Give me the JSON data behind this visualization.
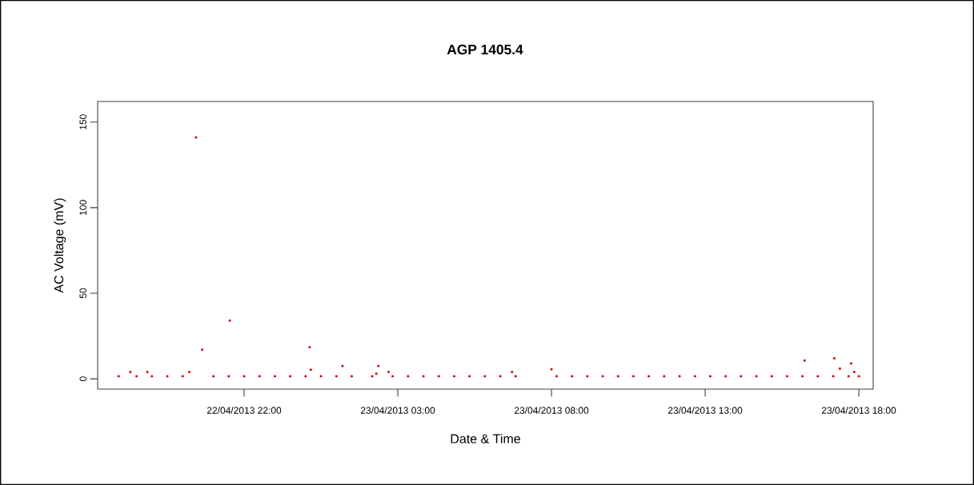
{
  "chart_data": {
    "type": "scatter",
    "title": "AGP   1405.4",
    "xlabel": "Date & Time",
    "ylabel": "AC Voltage (mV)",
    "xlim": [
      "2013-04-22T17:14",
      "2013-04-23T18:28"
    ],
    "ylim": [
      -6,
      162
    ],
    "xticks": [
      {
        "value": "2013-04-22T22:00",
        "label": "22/04/2013 22:00"
      },
      {
        "value": "2013-04-23T03:00",
        "label": "23/04/2013 03:00"
      },
      {
        "value": "2013-04-23T08:00",
        "label": "23/04/2013 08:00"
      },
      {
        "value": "2013-04-23T13:00",
        "label": "23/04/2013 13:00"
      },
      {
        "value": "2013-04-23T18:00",
        "label": "23/04/2013 18:00"
      }
    ],
    "yticks": [
      0,
      50,
      100,
      150
    ],
    "grid": false,
    "series": [
      {
        "color": "#cc0000",
        "x": [
          "2013-04-22T17:55",
          "2013-04-22T18:18",
          "2013-04-22T18:30",
          "2013-04-22T18:51",
          "2013-04-22T19:00",
          "2013-04-22T19:30",
          "2013-04-22T20:00",
          "2013-04-22T20:13",
          "2013-04-22T20:26",
          "2013-04-22T20:38",
          "2013-04-22T21:00",
          "2013-04-22T21:30",
          "2013-04-22T21:32",
          "2013-04-22T22:00",
          "2013-04-22T22:30",
          "2013-04-22T23:00",
          "2013-04-22T23:30",
          "2013-04-23T00:00",
          "2013-04-23T00:08",
          "2013-04-23T00:10",
          "2013-04-23T00:30",
          "2013-04-23T01:00",
          "2013-04-23T01:12",
          "2013-04-23T01:30",
          "2013-04-23T02:10",
          "2013-04-23T02:18",
          "2013-04-23T02:22",
          "2013-04-23T02:42",
          "2013-04-23T02:50",
          "2013-04-23T03:20",
          "2013-04-23T03:50",
          "2013-04-23T04:20",
          "2013-04-23T04:50",
          "2013-04-23T05:20",
          "2013-04-23T05:50",
          "2013-04-23T06:20",
          "2013-04-23T06:43",
          "2013-04-23T06:50",
          "2013-04-23T08:00",
          "2013-04-23T08:10",
          "2013-04-23T08:40",
          "2013-04-23T09:10",
          "2013-04-23T09:40",
          "2013-04-23T10:10",
          "2013-04-23T10:40",
          "2013-04-23T11:10",
          "2013-04-23T11:40",
          "2013-04-23T12:10",
          "2013-04-23T12:40",
          "2013-04-23T13:10",
          "2013-04-23T13:40",
          "2013-04-23T14:10",
          "2013-04-23T14:40",
          "2013-04-23T15:10",
          "2013-04-23T15:40",
          "2013-04-23T16:10",
          "2013-04-23T16:14",
          "2013-04-23T16:40",
          "2013-04-23T17:10",
          "2013-04-23T17:12",
          "2013-04-23T17:23",
          "2013-04-23T17:40",
          "2013-04-23T17:45",
          "2013-04-23T17:51",
          "2013-04-23T18:00"
        ],
        "values": [
          1.5,
          4,
          1.5,
          4,
          1.5,
          1.5,
          1.5,
          4,
          141,
          17,
          1.5,
          1.5,
          34,
          1.5,
          1.5,
          1.5,
          1.5,
          1.5,
          18.5,
          5.3,
          1.5,
          1.5,
          7.5,
          1.5,
          1.5,
          3,
          7.5,
          4,
          1.5,
          1.5,
          1.5,
          1.5,
          1.5,
          1.5,
          1.5,
          1.5,
          4,
          1.5,
          5.6,
          1.5,
          1.5,
          1.5,
          1.5,
          1.5,
          1.5,
          1.5,
          1.5,
          1.5,
          1.5,
          1.5,
          1.5,
          1.5,
          1.5,
          1.5,
          1.5,
          1.5,
          10.7,
          1.5,
          1.5,
          12,
          6,
          1.5,
          9,
          4,
          1.5
        ]
      }
    ]
  }
}
